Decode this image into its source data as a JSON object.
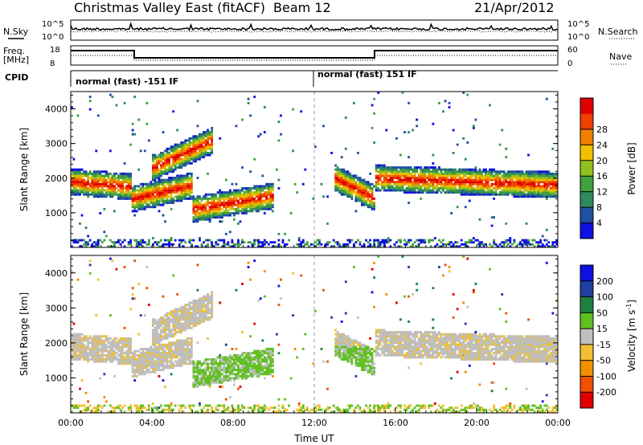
{
  "header": {
    "station": "Christmas Valley East (fitACF)",
    "beam": "Beam 12",
    "date": "21/Apr/2012"
  },
  "strips": {
    "nsky_label": "N.Sky",
    "nsearch_label": "N.Search",
    "nsky_ticks": [
      "10^5",
      "10^0"
    ],
    "nsearch_ticks": [
      "10^5",
      "10^0"
    ],
    "freq_label": [
      "Freq.",
      "[MHz]"
    ],
    "freq_ticks": [
      "18",
      "8"
    ],
    "nave_label": "Nave",
    "nave_ticks": [
      "60",
      "0"
    ],
    "cpid_label": "CPID",
    "cpid_segments": [
      "normal (fast) -151 IF",
      "normal (fast) 151 IF"
    ]
  },
  "colors": {
    "power_scale": [
      "#1010e0",
      "#2050a0",
      "#2e8a5a",
      "#40a040",
      "#90c020",
      "#f0c000",
      "#f08000",
      "#f04000",
      "#e00000"
    ],
    "velocity_scale": [
      "#e00000",
      "#f05000",
      "#f09000",
      "#f0c030",
      "#c0c0c0",
      "#60c020",
      "#208040",
      "#2040a0",
      "#1010e0"
    ],
    "ground_grey": "#bebebe"
  },
  "chart_data": [
    {
      "type": "heatmap",
      "name": "power",
      "xlabel": "",
      "ylabel": "Slant Range [km]",
      "xlim": [
        0,
        24
      ],
      "ylim": [
        0,
        4500
      ],
      "yticks": [
        "1000",
        "2000",
        "3000",
        "4000"
      ],
      "colorbar": {
        "label": "Power [dB]",
        "ticks": [
          "4",
          "8",
          "12",
          "16",
          "20",
          "24",
          "28"
        ]
      },
      "echo_bands": [
        {
          "t_start": 0.0,
          "t_end": 3.0,
          "range_start": 1900,
          "range_end": 1750
        },
        {
          "t_start": 3.0,
          "t_end": 6.0,
          "range_start": 1400,
          "range_end": 1800
        },
        {
          "t_start": 4.0,
          "t_end": 7.0,
          "range_start": 2300,
          "range_end": 3100
        },
        {
          "t_start": 6.0,
          "t_end": 10.0,
          "range_start": 1100,
          "range_end": 1500
        },
        {
          "t_start": 13.0,
          "t_end": 15.0,
          "range_start": 2000,
          "range_end": 1400
        },
        {
          "t_start": 15.0,
          "t_end": 24.0,
          "range_start": 2000,
          "range_end": 1800
        }
      ]
    },
    {
      "type": "heatmap",
      "name": "velocity",
      "xlabel": "Time UT",
      "ylabel": "Slant Range [km]",
      "xlim": [
        0,
        24
      ],
      "ylim": [
        0,
        4500
      ],
      "xticks": [
        "00:00",
        "04:00",
        "08:00",
        "12:00",
        "16:00",
        "20:00",
        "00:00"
      ],
      "yticks": [
        "1000",
        "2000",
        "3000",
        "4000"
      ],
      "colorbar": {
        "label": "Velocity [m s",
        "label_sup": "-1",
        "label_end": "]",
        "ticks": [
          "200",
          "100",
          "50",
          "15",
          "-15",
          "-50",
          "-100",
          "-200"
        ]
      }
    }
  ]
}
